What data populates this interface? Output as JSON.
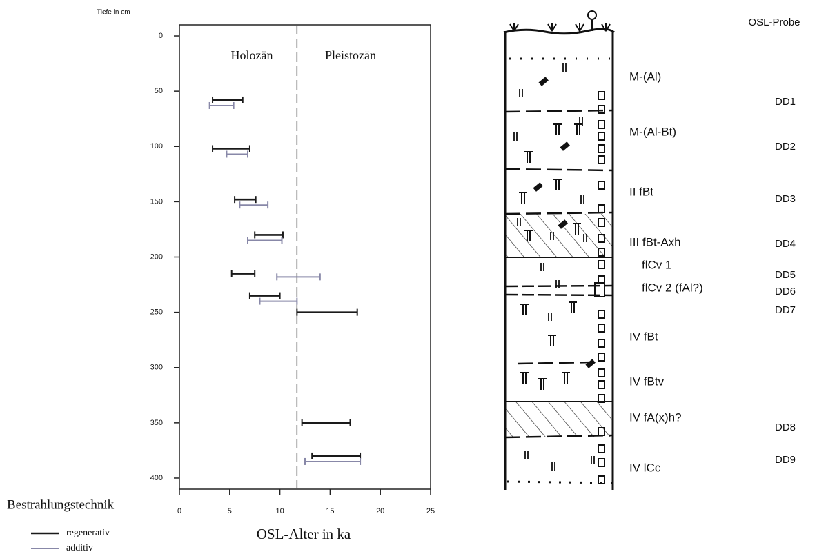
{
  "chart_data": {
    "type": "range",
    "y_label": "Tiefe in cm",
    "x_label": "OSL-Alter in ka",
    "annotations": [
      "Holozän",
      "Pleistozän"
    ],
    "epoch_boundary": 11.7,
    "legend_title": "Bestrahlungstechnik",
    "xlim": [
      0,
      25
    ],
    "xticks": [
      0,
      5,
      10,
      15,
      20,
      25
    ],
    "ylim": [
      -10,
      410
    ],
    "yticks": [
      0,
      50,
      100,
      150,
      200,
      250,
      300,
      350,
      400
    ],
    "y_reversed": true,
    "series": [
      {
        "name": "regenerativ",
        "color": "#1a1a1a",
        "depth": [
          58,
          102,
          148,
          180,
          215,
          235,
          250,
          350,
          380
        ],
        "low": [
          3.3,
          3.3,
          5.5,
          7.5,
          5.2,
          7.0,
          11.7,
          12.2,
          13.2
        ],
        "high": [
          6.3,
          7.0,
          7.6,
          10.3,
          7.5,
          10.0,
          17.7,
          17.0,
          18.0
        ]
      },
      {
        "name": "additiv",
        "color": "#8888a8",
        "depth": [
          63,
          107,
          153,
          185,
          218,
          240,
          385
        ],
        "low": [
          3.0,
          4.7,
          6.0,
          6.8,
          9.7,
          8.0,
          12.5
        ],
        "high": [
          5.4,
          6.8,
          8.8,
          10.2,
          14.0,
          11.7,
          18.0
        ]
      }
    ]
  },
  "profile": {
    "title": "OSL-Probe",
    "horizons": [
      "M-(Al)",
      "M-(Al-Bt)",
      "II fBt",
      "III fBt-Axh",
      "flCv 1",
      "flCv 2  (fAl?)",
      "IV fBt",
      "IV fBtv",
      "IV fA(x)h?",
      "IV lCc"
    ],
    "samples": [
      "DD1",
      "DD2",
      "DD3",
      "DD4",
      "DD5",
      "DD6",
      "DD7",
      "DD8",
      "DD9"
    ]
  }
}
